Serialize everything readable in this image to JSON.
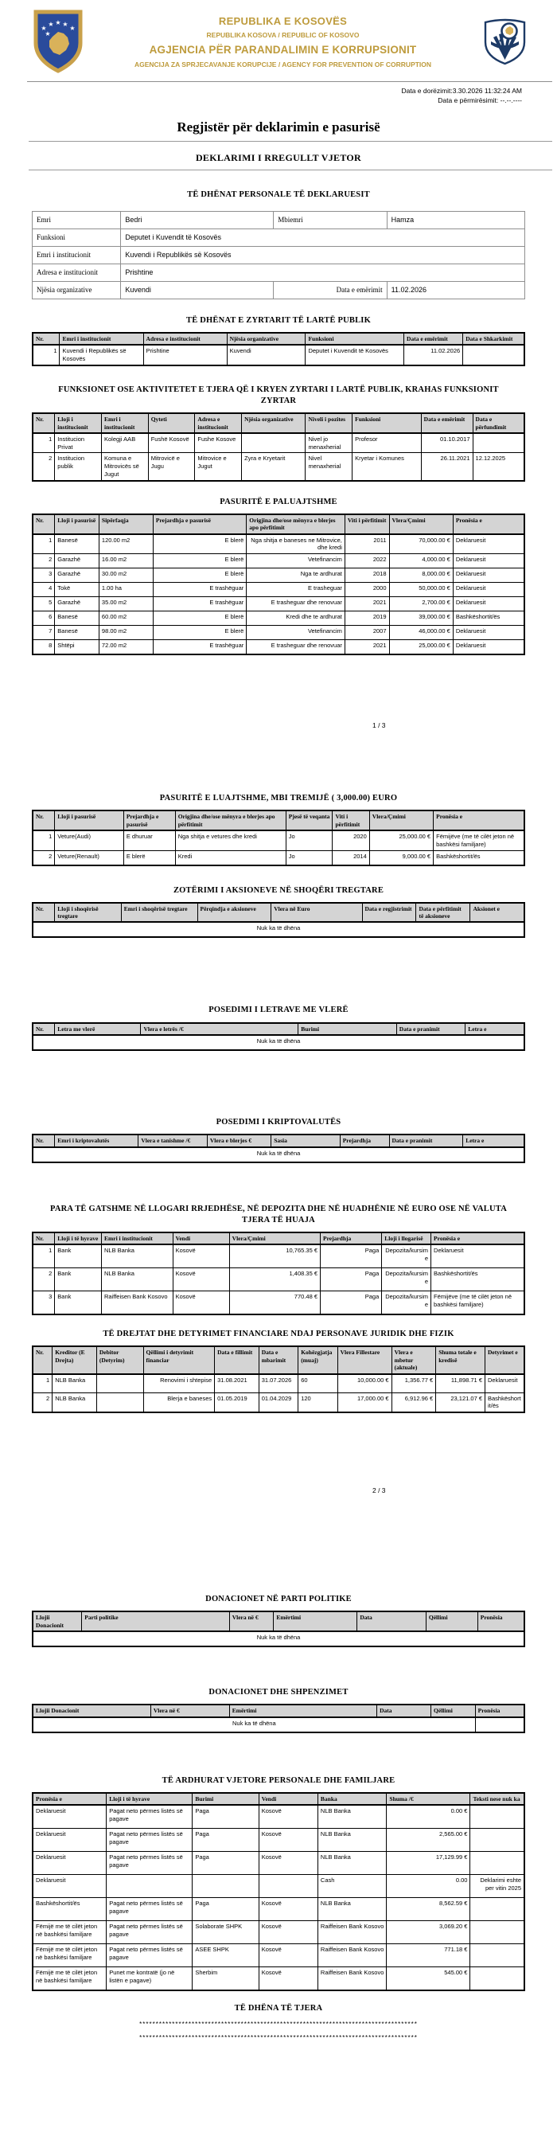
{
  "colors": {
    "brand_gold": "#BE9B3C",
    "logo_navy": "#1D3A66",
    "shield_blue": "#2A4B9B",
    "table_header_bg": "#D4D4D4"
  },
  "header": {
    "line1": "REPUBLIKA E KOSOVËS",
    "line2": "REPUBLIKA KOSOVA / REPUBLIC OF KOSOVO",
    "line3": "AGJENCIA PËR PARANDALIMIN E KORRUPSIONIT",
    "line4": "AGENCIJA ZA SPRJECAVANJE KORUPCIJE / AGENCY FOR PREVENTION OF CORRUPTION",
    "submit_date": "Data e dorëzimit:3.30.2026 11:32:24 AM",
    "update_date": "Data e përmirësimit: --.--.----"
  },
  "titles": {
    "register": "Regjistër për deklarimin e pasurisë",
    "declaration": "DEKLARIMI I RREGULLT VJETOR"
  },
  "personal": {
    "title": "TË DHËNAT PERSONALE TË DEKLARUESIT",
    "fields": {
      "emri_label": "Emri",
      "emri": "Bedri",
      "mbiemri_label": "Mbiemri",
      "mbiemri": "Hamza",
      "funksioni_label": "Funksioni",
      "funksioni": "Deputet i Kuvendit të Kosovës",
      "institucioni_label": "Emri i institucionit",
      "institucioni": "Kuvendi i Republikës së Kosovës",
      "adresa_label": "Adresa e institucionit",
      "adresa": "Prishtine",
      "njesia_label": "Njësia organizative",
      "njesia": "Kuvendi",
      "data_emerimit_label": "Data e emërimit",
      "data_emerimit": "11.02.2026"
    }
  },
  "pagemarks": {
    "p1": "1 / 3",
    "p2": "2 / 3"
  },
  "other": {
    "title": "TË DHËNA TË TJERA",
    "stars1": "*************************************************************************************",
    "stars2": "*************************************************************************************"
  },
  "tables": [
    {
      "title": "TË DHËNAT E ZYRTARIT TË LARTË PUBLIK",
      "headers": [
        "Nr.",
        "Emri i institucionit",
        "Adresa e institucionit",
        "Njësia organizative",
        "Funksioni",
        "Data e emërimit",
        "Data e Shkarkimit"
      ],
      "rows": [
        [
          "1",
          "Kuvendi i Republikës së Kosovës",
          "Prishtine",
          "Kuvendi",
          "Deputet i Kuvendit të Kosovës",
          "11.02.2026",
          ""
        ]
      ]
    },
    {
      "title": "FUNKSIONET OSE AKTIVITETET E TJERA QË I KRYEN ZYRTARI I LARTË PUBLIK, KRAHAS FUNKSIONIT ZYRTAR",
      "headers": [
        "Nr.",
        "Lloji i institucionit",
        "Emri i institucionit",
        "Qyteti",
        "Adresa e institucionit",
        "Njësia organizative",
        "Niveli i pozites",
        "Funksioni",
        "Data e emërimit",
        "Data e përfundimit"
      ],
      "rows": [
        [
          "1",
          "Institucion Privat",
          "Kolegji AAB",
          "Fushë Kosovë",
          "Fushe Kosove",
          "",
          "Nivel jo menaxherial",
          "Profesor",
          "01.10.2017",
          ""
        ],
        [
          "2",
          "Institucion publik",
          "Komuna e Mitrovicës së Jugut",
          "Mitrovicë e Jugu",
          "Mitrovice e Jugut",
          "Zyra e Kryetarit",
          "Nivel menaxherial",
          "Kryetar i Komunes",
          "26.11.2021",
          "12.12.2025"
        ]
      ]
    },
    {
      "title": "PASURITË E PALUAJTSHME",
      "headers": [
        "Nr.",
        "Lloji i pasurisë",
        "Sipërfaqja",
        "Prejardhja e pasurisë",
        "Origjina dhe/ose mënyra e blerjes apo përfitimit",
        "Viti i përfitimit",
        "Vlera/Çmimi",
        "Pronësia e"
      ],
      "rows": [
        [
          "1",
          "Banesë",
          "120.00 m2",
          "E blerë",
          "Nga shitja e baneses ne Mitrovice, dhe kredi",
          "2011",
          "70,000.00 €",
          "Deklaruesit"
        ],
        [
          "2",
          "Garazhë",
          "16.00 m2",
          "E blerë",
          "Vetefinancim",
          "2022",
          "4,000.00 €",
          "Deklaruesit"
        ],
        [
          "3",
          "Garazhë",
          "30.00 m2",
          "E blerë",
          "Nga te ardhurat",
          "2018",
          "8,000.00 €",
          "Deklaruesit"
        ],
        [
          "4",
          "Tokë",
          "1.00 ha",
          "E trashëguar",
          "E trasheguar",
          "2000",
          "50,000.00 €",
          "Deklaruesit"
        ],
        [
          "5",
          "Garazhë",
          "35.00 m2",
          "E trashëguar",
          "E trasheguar dhe renovuar",
          "2021",
          "2,700.00 €",
          "Deklaruesit"
        ],
        [
          "6",
          "Banesë",
          "60.00 m2",
          "E blerë",
          "Kredi dhe te ardhurat",
          "2019",
          "39,000.00 €",
          "Bashkëshortit/ës"
        ],
        [
          "7",
          "Banesë",
          "98.00 m2",
          "E blerë",
          "Vetefinancim",
          "2007",
          "46,000.00 €",
          "Deklaruesit"
        ],
        [
          "8",
          "Shtëpi",
          "72.00 m2",
          "E trashëguar",
          "E trasheguar dhe renovuar",
          "2021",
          "25,000.00 €",
          "Deklaruesit"
        ]
      ]
    },
    {
      "title": "PASURITË E LUAJTSHME, MBI TREMIJË ( 3,000.00) EURO",
      "headers": [
        "Nr.",
        "Lloji i pasurisë",
        "Prejardhja e pasurisë",
        "Origjina dhe/ose mënyra e blerjes apo përfitimit",
        "Pjesë të veqanta",
        "Viti i përfitimit",
        "Vlera/Çmimi",
        "Pronësia e"
      ],
      "rows": [
        [
          "1",
          "Veture(Audi)",
          "E dhuruar",
          "Nga shitja e vetures dhe kredi",
          "Jo",
          "2020",
          "25,000.00 €",
          "Fëmijëve (me të cilët jeton në bashkësi familjare)"
        ],
        [
          "2",
          "Veture(Renault)",
          "E blerë",
          "Kredi",
          "Jo",
          "2014",
          "9,000.00 €",
          "Bashkëshortit/ës"
        ]
      ]
    },
    {
      "title": "ZOTËRIMI I AKSIONEVE NË SHOQËRI TREGTARE",
      "headers": [
        "Nr.",
        "Lloji i shoqërisë tregtare",
        "Emri i shoqërisë tregtare",
        "Përqindja e aksioneve",
        "Vlera në Euro",
        "Data e regjistrimit",
        "Data e përfitimit të aksioneve",
        "Aksionet e"
      ],
      "rows": [],
      "empty_text": "Nuk ka të dhëna"
    },
    {
      "title": "POSEDIMI I LETRAVE ME VLERË",
      "headers": [
        "Nr.",
        "Letra me vlerë",
        "Vlera e letrës /€",
        "Burimi",
        "Data e pranimit",
        "Letra e"
      ],
      "rows": [],
      "empty_text": "Nuk ka të dhëna"
    },
    {
      "title": "POSEDIMI I KRIPTOVALUTËS",
      "headers": [
        "Nr.",
        "Emri i kriptovalutës",
        "Vlera e tanishme /€",
        "Vlera e blerjes €",
        "Sasia",
        "Prejardhja",
        "Data e pranimit",
        "Letra e"
      ],
      "rows": [],
      "empty_text": "Nuk ka të dhëna"
    },
    {
      "title": "PARA TË GATSHME NË LLOGARI RRJEDHËSE, NË DEPOZITA DHE NË HUADHËNIE NË EURO OSE NË VALUTA TJERA TË HUAJA",
      "headers": [
        "Nr.",
        "Lloji i të hyrave",
        "Emri i institucionit",
        "Vendi",
        "Vlera/Çmimi",
        "Prejardhja",
        "Lloji i llogarisë",
        "Pronësia e"
      ],
      "rows": [
        [
          "1",
          "Bank",
          "NLB Banka",
          "Kosovë",
          "10,765.35 €",
          "Paga",
          "Depozita/kursime",
          "Deklaruesit"
        ],
        [
          "2",
          "Bank",
          "NLB Banka",
          "Kosovë",
          "1,408.35 €",
          "Paga",
          "Depozita/kursime",
          "Bashkëshortit/ës"
        ],
        [
          "3",
          "Bank",
          "Raiffeisen Bank Kosovo",
          "Kosovë",
          "770.48 €",
          "Paga",
          "Depozita/kursime",
          "Fëmijëve (me të cilët jeton në bashkësi familjare)"
        ]
      ]
    },
    {
      "title": "TË DREJTAT DHE DETYRIMET FINANCIARE NDAJ PERSONAVE JURIDIK DHE FIZIK",
      "headers": [
        "Nr.",
        "Kreditor (E Drejta)",
        "Debitor (Detyrim)",
        "Qëllimi i detyrimit financiar",
        "Data e fillimit",
        "Data e mbarimit",
        "Kohëzgjatja (muaj)",
        "Vlera Fillestare",
        "Vlera e mbetur (aktuale)",
        "Shuma totale e kredisë",
        "Detyrimet e"
      ],
      "rows": [
        [
          "1",
          "NLB Banka",
          "",
          "Renovimi i shtepise",
          "31.08.2021",
          "31.07.2026",
          "60",
          "10,000.00 €",
          "1,356.77 €",
          "11,898.71 €",
          "Deklaruesit"
        ],
        [
          "2",
          "NLB Banka",
          "",
          "Blerja e baneses",
          "01.05.2019",
          "01.04.2029",
          "120",
          "17,000.00 €",
          "6,912.96 €",
          "23,121.07 €",
          "Bashkëshortit/ës"
        ]
      ]
    },
    {
      "title": "DONACIONET NË PARTI POLITIKE",
      "headers": [
        "Llojii Donacionit",
        "Parti politike",
        "Vlera në €",
        "Emërtimi",
        "Data",
        "Qëllimi",
        "Pronësia"
      ],
      "rows": [],
      "empty_text": "Nuk ka të dhëna"
    },
    {
      "title": "DONACIONET DHE SHPENZIMET",
      "headers": [
        "Llojii Donacionit",
        "Vlera në €",
        "Emërtimi",
        "Data",
        "Qëllimi",
        "Pronësia"
      ],
      "rows": [],
      "empty_text": "Nuk ka të dhëna"
    },
    {
      "title": "TË ARDHURAT VJETORE PERSONALE DHE FAMILJARE",
      "headers": [
        "Pronësia e",
        "Lloji i të hyrave",
        "Burimi",
        "Vendi",
        "Banka",
        "Shuma /€",
        "Teksti nese nuk ka"
      ],
      "rows": [
        [
          "Deklaruesit",
          "Pagat neto përmes listës së pagave",
          "Paga",
          "Kosovë",
          "NLB Banka",
          "0.00 €",
          ""
        ],
        [
          "Deklaruesit",
          "Pagat neto përmes listës së pagave",
          "Paga",
          "Kosovë",
          "NLB Banka",
          "2,565.00 €",
          ""
        ],
        [
          "Deklaruesit",
          "Pagat neto përmes listës së pagave",
          "Paga",
          "Kosovë",
          "NLB Banka",
          "17,129.99 €",
          ""
        ],
        [
          "Deklaruesit",
          "",
          "",
          "",
          "Cash",
          "0.00",
          "Deklarimi eshte per vitin 2025"
        ],
        [
          "Bashkëshortit/ës",
          "Pagat neto përmes listës së pagave",
          "Paga",
          "Kosovë",
          "NLB Banka",
          "8,562.59 €",
          ""
        ],
        [
          "Fëmijë me të cilët jeton në bashkësi familjare",
          "Pagat neto përmes listës së pagave",
          "Solaborate SHPK",
          "Kosovë",
          "Raiffeisen Bank Kosovo",
          "3,069.20 €",
          ""
        ],
        [
          "Fëmijë me të cilët jeton në bashkësi familjare",
          "Pagat neto përmes listës së pagave",
          "ASEE SHPK",
          "Kosovë",
          "Raiffeisen Bank Kosovo",
          "771.18 €",
          ""
        ],
        [
          "Fëmijë me të cilët jeton në bashkësi familjare",
          "Punet me kontratë (jo në listën e pagave)",
          "Sherbim",
          "Kosovë",
          "Raiffeisen Bank Kosovo",
          "545.00 €",
          ""
        ]
      ]
    }
  ]
}
